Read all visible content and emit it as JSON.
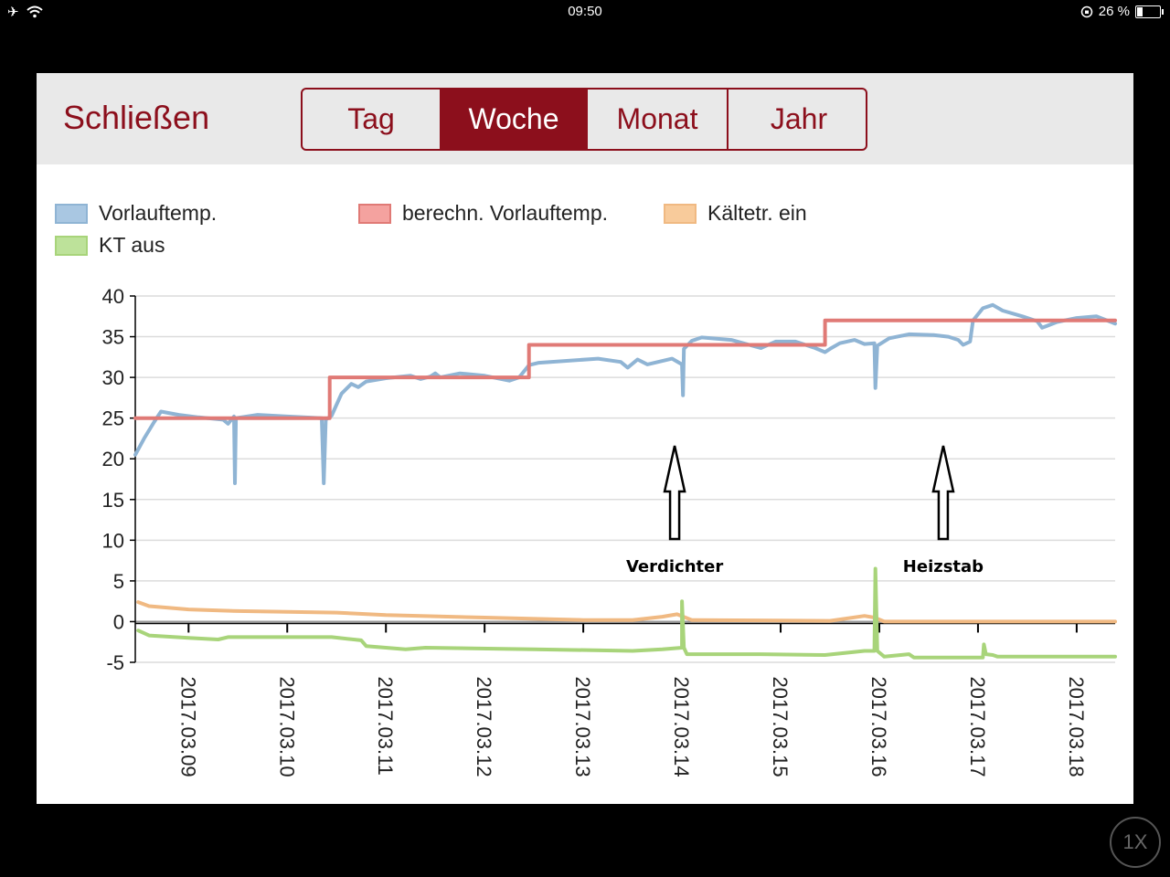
{
  "status": {
    "time": "09:50",
    "battery": "26 %",
    "battery_level": 0.26
  },
  "header": {
    "close_label": "Schließen",
    "tabs": [
      {
        "label": "Tag",
        "active": false
      },
      {
        "label": "Woche",
        "active": true
      },
      {
        "label": "Monat",
        "active": false
      },
      {
        "label": "Jahr",
        "active": false
      }
    ]
  },
  "colors": {
    "accent": "#8c0f1c",
    "vorlauf": "#8fb4d4",
    "berechn": "#e07a76",
    "kaeltetr_ein": "#f0b982",
    "kt_aus": "#a8d47a"
  },
  "legend": [
    {
      "label": "Vorlauftemp.",
      "color": "#8fb4d4"
    },
    {
      "label": "berechn. Vorlauftemp.",
      "color": "#e07a76"
    },
    {
      "label": "Kältetr. ein",
      "color": "#f0b982"
    },
    {
      "label": "KT aus",
      "color": "#a8d47a"
    }
  ],
  "annotations": [
    {
      "label": "Verdichter",
      "x": "2017.03.14"
    },
    {
      "label": "Heizstab",
      "x": "2017.03.17"
    }
  ],
  "zoom_badge": "1X",
  "chart_data": {
    "type": "line",
    "title": "",
    "xlabel": "",
    "ylabel": "",
    "ylim": [
      -5,
      40
    ],
    "yticks": [
      40,
      35,
      30,
      25,
      20,
      15,
      10,
      5,
      0,
      -5
    ],
    "xticks": [
      "2017.03.09",
      "2017.03.10",
      "2017.03.11",
      "2017.03.12",
      "2017.03.13",
      "2017.03.14",
      "2017.03.15",
      "2017.03.16",
      "2017.03.17",
      "2017.03.18"
    ],
    "x_domain": [
      8.46,
      18.39
    ],
    "grid": true,
    "legend_position": "top",
    "series": [
      {
        "name": "Vorlauftemp.",
        "color": "#8fb4d4",
        "points": [
          [
            8.46,
            20.5
          ],
          [
            8.55,
            22.5
          ],
          [
            8.65,
            24.5
          ],
          [
            8.72,
            25.8
          ],
          [
            8.9,
            25.4
          ],
          [
            9.1,
            25.1
          ],
          [
            9.35,
            24.8
          ],
          [
            9.4,
            24.3
          ],
          [
            9.46,
            25.2
          ],
          [
            9.47,
            17
          ],
          [
            9.48,
            25
          ],
          [
            9.7,
            25.4
          ],
          [
            10.0,
            25.2
          ],
          [
            10.35,
            25
          ],
          [
            10.37,
            17
          ],
          [
            10.39,
            24.8
          ],
          [
            10.45,
            25.3
          ],
          [
            10.55,
            28
          ],
          [
            10.65,
            29.2
          ],
          [
            10.72,
            28.8
          ],
          [
            10.8,
            29.5
          ],
          [
            11.0,
            29.9
          ],
          [
            11.25,
            30.2
          ],
          [
            11.35,
            29.8
          ],
          [
            11.45,
            30.1
          ],
          [
            11.5,
            30.5
          ],
          [
            11.55,
            30
          ],
          [
            11.75,
            30.5
          ],
          [
            12.0,
            30.2
          ],
          [
            12.25,
            29.6
          ],
          [
            12.35,
            30
          ],
          [
            12.45,
            31.5
          ],
          [
            12.55,
            31.8
          ],
          [
            13.15,
            32.3
          ],
          [
            13.38,
            31.9
          ],
          [
            13.45,
            31.2
          ],
          [
            13.55,
            32.2
          ],
          [
            13.65,
            31.6
          ],
          [
            13.9,
            32.3
          ],
          [
            14.0,
            31.6
          ],
          [
            14.01,
            27.8
          ],
          [
            14.02,
            33.5
          ],
          [
            14.1,
            34.5
          ],
          [
            14.2,
            34.9
          ],
          [
            14.5,
            34.6
          ],
          [
            14.8,
            33.6
          ],
          [
            14.95,
            34.4
          ],
          [
            15.15,
            34.4
          ],
          [
            15.35,
            33.6
          ],
          [
            15.45,
            33.1
          ],
          [
            15.5,
            33.5
          ],
          [
            15.6,
            34.2
          ],
          [
            15.75,
            34.6
          ],
          [
            15.85,
            34.1
          ],
          [
            15.95,
            34.2
          ],
          [
            15.96,
            28.7
          ],
          [
            15.98,
            33.9
          ],
          [
            16.1,
            34.8
          ],
          [
            16.3,
            35.3
          ],
          [
            16.55,
            35.2
          ],
          [
            16.7,
            35
          ],
          [
            16.8,
            34.6
          ],
          [
            16.85,
            34
          ],
          [
            16.92,
            34.4
          ],
          [
            16.95,
            37
          ],
          [
            17.05,
            38.5
          ],
          [
            17.15,
            38.9
          ],
          [
            17.25,
            38.2
          ],
          [
            17.45,
            37.5
          ],
          [
            17.6,
            36.9
          ],
          [
            17.65,
            36.1
          ],
          [
            17.8,
            36.8
          ],
          [
            18.0,
            37.3
          ],
          [
            18.2,
            37.5
          ],
          [
            18.39,
            36.6
          ]
        ]
      },
      {
        "name": "berechn. Vorlauftemp.",
        "color": "#e07a76",
        "points": [
          [
            8.46,
            25
          ],
          [
            10.43,
            25
          ],
          [
            10.43,
            30
          ],
          [
            12.45,
            30
          ],
          [
            12.45,
            34
          ],
          [
            15.45,
            34
          ],
          [
            15.45,
            37
          ],
          [
            18.39,
            37
          ]
        ]
      },
      {
        "name": "Kältetr. ein",
        "color": "#f0b982",
        "points": [
          [
            8.49,
            2.4
          ],
          [
            8.6,
            1.9
          ],
          [
            9.0,
            1.5
          ],
          [
            9.5,
            1.3
          ],
          [
            10.5,
            1.1
          ],
          [
            11.0,
            0.8
          ],
          [
            12.0,
            0.5
          ],
          [
            13.0,
            0.2
          ],
          [
            13.5,
            0.2
          ],
          [
            13.8,
            0.6
          ],
          [
            13.95,
            0.9
          ],
          [
            14.1,
            0.2
          ],
          [
            15.5,
            0.1
          ],
          [
            15.85,
            0.7
          ],
          [
            15.95,
            0.5
          ],
          [
            16.05,
            0
          ],
          [
            18.39,
            0
          ]
        ]
      },
      {
        "name": "KT aus",
        "color": "#a8d47a",
        "points": [
          [
            8.49,
            -1.1
          ],
          [
            8.6,
            -1.7
          ],
          [
            9.0,
            -2.0
          ],
          [
            9.3,
            -2.2
          ],
          [
            9.4,
            -1.9
          ],
          [
            10.45,
            -1.9
          ],
          [
            10.75,
            -2.3
          ],
          [
            10.8,
            -3.0
          ],
          [
            11.2,
            -3.4
          ],
          [
            11.4,
            -3.2
          ],
          [
            12.5,
            -3.4
          ],
          [
            13.5,
            -3.6
          ],
          [
            13.8,
            -3.4
          ],
          [
            14.0,
            -3.2
          ],
          [
            14.0,
            2.5
          ],
          [
            14.02,
            -3.2
          ],
          [
            14.05,
            -4.0
          ],
          [
            14.8,
            -4.0
          ],
          [
            15.45,
            -4.1
          ],
          [
            15.85,
            -3.6
          ],
          [
            15.95,
            -3.6
          ],
          [
            15.96,
            6.5
          ],
          [
            15.98,
            -3.6
          ],
          [
            16.05,
            -4.3
          ],
          [
            16.3,
            -4.0
          ],
          [
            16.35,
            -4.4
          ],
          [
            17.0,
            -4.4
          ],
          [
            17.05,
            -4.4
          ],
          [
            17.06,
            -2.8
          ],
          [
            17.08,
            -4.0
          ],
          [
            17.15,
            -4.1
          ],
          [
            17.2,
            -4.3
          ],
          [
            17.3,
            -4.3
          ],
          [
            18.39,
            -4.3
          ]
        ]
      }
    ]
  }
}
